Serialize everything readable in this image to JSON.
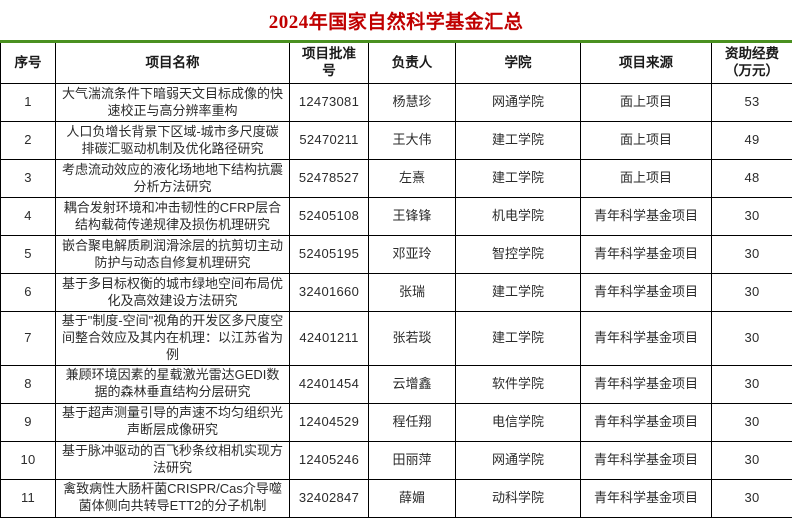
{
  "title": "2024年国家自然科学基金汇总",
  "colors": {
    "title_text": "#c00000",
    "table_top_border": "#4a9020",
    "grid_border": "#000000",
    "body_text": "#2b2b2b"
  },
  "table": {
    "columns": [
      "序号",
      "项目名称",
      "项目批准\n号",
      "负责人",
      "学院",
      "项目来源",
      "资助经费\n（万元）"
    ],
    "rows": [
      {
        "no": "1",
        "name": "大气湍流条件下暗弱天文目标成像的快速校正与高分辨率重构",
        "grant_no": "12473081",
        "pi": "杨慧珍",
        "college": "网通学院",
        "source": "面上项目",
        "fund": "53"
      },
      {
        "no": "2",
        "name": "人口负增长背景下区域-城市多尺度碳排碳汇驱动机制及优化路径研究",
        "grant_no": "52470211",
        "pi": "王大伟",
        "college": "建工学院",
        "source": "面上项目",
        "fund": "49"
      },
      {
        "no": "3",
        "name": "考虑流动效应的液化场地地下结构抗震分析方法研究",
        "grant_no": "52478527",
        "pi": "左熹",
        "college": "建工学院",
        "source": "面上项目",
        "fund": "48"
      },
      {
        "no": "4",
        "name": "耦合发射环境和冲击韧性的CFRP层合结构载荷传递规律及损伤机理研究",
        "grant_no": "52405108",
        "pi": "王锋锋",
        "college": "机电学院",
        "source": "青年科学基金项目",
        "fund": "30"
      },
      {
        "no": "5",
        "name": "嵌合聚电解质刷润滑涂层的抗剪切主动防护与动态自修复机理研究",
        "grant_no": "52405195",
        "pi": "邓亚玲",
        "college": "智控学院",
        "source": "青年科学基金项目",
        "fund": "30"
      },
      {
        "no": "6",
        "name": "基于多目标权衡的城市绿地空间布局优化及高效建设方法研究",
        "grant_no": "32401660",
        "pi": "张瑞",
        "college": "建工学院",
        "source": "青年科学基金项目",
        "fund": "30"
      },
      {
        "no": "7",
        "name": "基于\"制度-空间\"视角的开发区多尺度空间整合效应及其内在机理：以江苏省为例",
        "grant_no": "42401211",
        "pi": "张若琰",
        "college": "建工学院",
        "source": "青年科学基金项目",
        "fund": "30"
      },
      {
        "no": "8",
        "name": "兼顾环境因素的星载激光雷达GEDI数据的森林垂直结构分层研究",
        "grant_no": "42401454",
        "pi": "云增鑫",
        "college": "软件学院",
        "source": "青年科学基金项目",
        "fund": "30"
      },
      {
        "no": "9",
        "name": "基于超声测量引导的声速不均匀组织光声断层成像研究",
        "grant_no": "12404529",
        "pi": "程任翔",
        "college": "电信学院",
        "source": "青年科学基金项目",
        "fund": "30"
      },
      {
        "no": "10",
        "name": "基于脉冲驱动的百飞秒条纹相机实现方法研究",
        "grant_no": "12405246",
        "pi": "田丽萍",
        "college": "网通学院",
        "source": "青年科学基金项目",
        "fund": "30"
      },
      {
        "no": "11",
        "name": "禽致病性大肠杆菌CRISPR/Cas介导噬菌体侧向共转导ETT2的分子机制",
        "grant_no": "32402847",
        "pi": "薛媚",
        "college": "动科学院",
        "source": "青年科学基金项目",
        "fund": "30"
      }
    ]
  }
}
